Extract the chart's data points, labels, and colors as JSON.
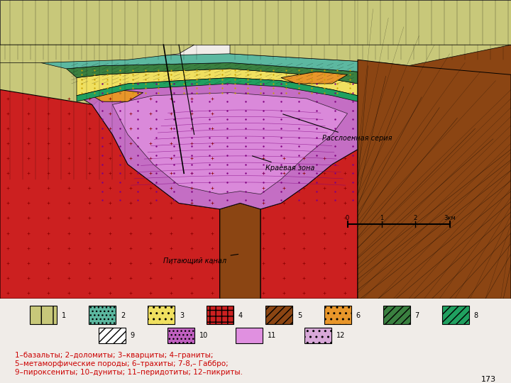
{
  "bg_color": "#f0ece8",
  "diagram_bg": "#ffffff",
  "title": "",
  "annotations": {
    "rassloennaya": "Расслоенная серия",
    "kraevaya": "Краевая зона",
    "pitayuschiy": "Питающий канал"
  },
  "scale_bar": "0   1   2   3км",
  "legend_items": [
    {
      "num": "1",
      "color": "#c8c87a",
      "hatch": "||"
    },
    {
      "num": "2",
      "color": "#5cb8a0",
      "hatch": "..."
    },
    {
      "num": "3",
      "color": "#f0e060",
      "hatch": ".."
    },
    {
      "num": "4",
      "color": "#cc2020",
      "hatch": "++"
    },
    {
      "num": "5",
      "color": "#8b5a2b",
      "hatch": "///"
    },
    {
      "num": "6",
      "color": "#e8962a",
      "hatch": "..."
    },
    {
      "num": "7",
      "color": "#3a8040",
      "hatch": "///"
    },
    {
      "num": "8",
      "color": "#20a060",
      "hatch": "///"
    },
    {
      "num": "9",
      "color": "#ffffff",
      "hatch": "///"
    },
    {
      "num": "10",
      "color": "#c060c0",
      "hatch": "..."
    },
    {
      "num": "11",
      "color": "#e090e0",
      "hatch": ""
    },
    {
      "num": "12",
      "color": "#d8a8d8",
      "hatch": ".."
    }
  ],
  "caption_line1": "1–базальты; 2–доломиты; 3–кварциты; 4–граниты;",
  "caption_line2": "5–метаморфические породы; 6–трахиты; 7-8– Габбро;",
  "caption_line3": "9–пироксениты; 10–дуниты; 11–перидотиты; 12–пикриты.",
  "page_num": "173"
}
